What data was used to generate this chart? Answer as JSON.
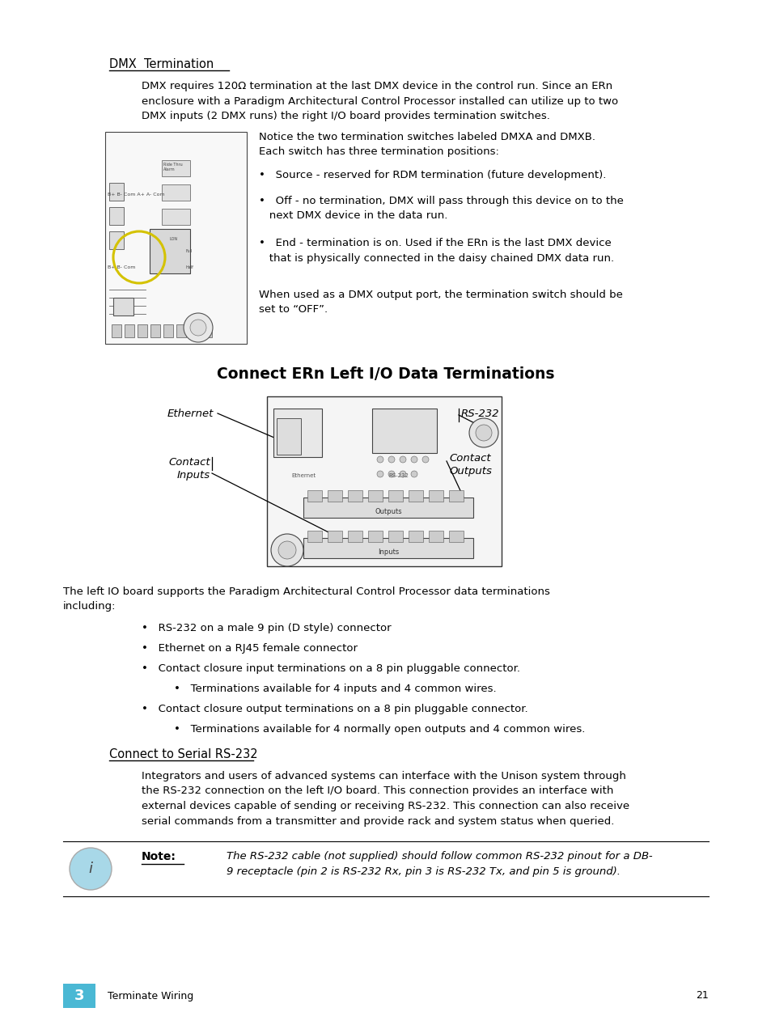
{
  "page_bg": "#ffffff",
  "text_color": "#000000",
  "chapter_color": "#4ab8d4",
  "section1_title": "DMX  Termination",
  "section1_body1": "DMX requires 120Ω termination at the last DMX device in the control run. Since an ERn\nenclosure with a Paradigm Architectural Control Processor installed can utilize up to two\nDMX inputs (2 DMX runs) the right I/O board provides termination switches.",
  "section1_notice": "Notice the two termination switches labeled DMXA and DMXB.\nEach switch has three termination positions:",
  "bullet1": "Source - reserved for RDM termination (future development).",
  "bullet2": "Off - no termination, DMX will pass through this device on to the\n   next DMX device in the data run.",
  "bullet3": "End - termination is on. Used if the ERn is the last DMX device\n   that is physically connected in the daisy chained DMX data run.",
  "section1_when": "When used as a DMX output port, the termination switch should be\nset to “OFF”.",
  "section2_title": "Connect ERn Left I/O Data Terminations",
  "section2_body": "The left IO board supports the Paradigm Architectural Control Processor data terminations\nincluding:",
  "s2b1": "RS-232 on a male 9 pin (D style) connector",
  "s2b2": "Ethernet on a RJ45 female connector",
  "s2b3": "Contact closure input terminations on a 8 pin pluggable connector.",
  "s2b4": "Terminations available for 4 inputs and 4 common wires.",
  "s2b5": "Contact closure output terminations on a 8 pin pluggable connector.",
  "s2b6": "Terminations available for 4 normally open outputs and 4 common wires.",
  "section3_title": "Connect to Serial RS-232",
  "section3_body": "Integrators and users of advanced systems can interface with the Unison system through\nthe RS-232 connection on the left I/O board. This connection provides an interface with\nexternal devices capable of sending or receiving RS-232. This connection can also receive\nserial commands from a transmitter and provide rack and system status when queried.",
  "note_label": "Note:",
  "note_text": "The RS-232 cable (not supplied) should follow common RS-232 pinout for a DB-\n9 receptacle (pin 2 is RS-232 Rx, pin 3 is RS-232 Tx, and pin 5 is ground).",
  "footer_num": "3",
  "footer_text": "Terminate Wiring",
  "footer_page": "21"
}
